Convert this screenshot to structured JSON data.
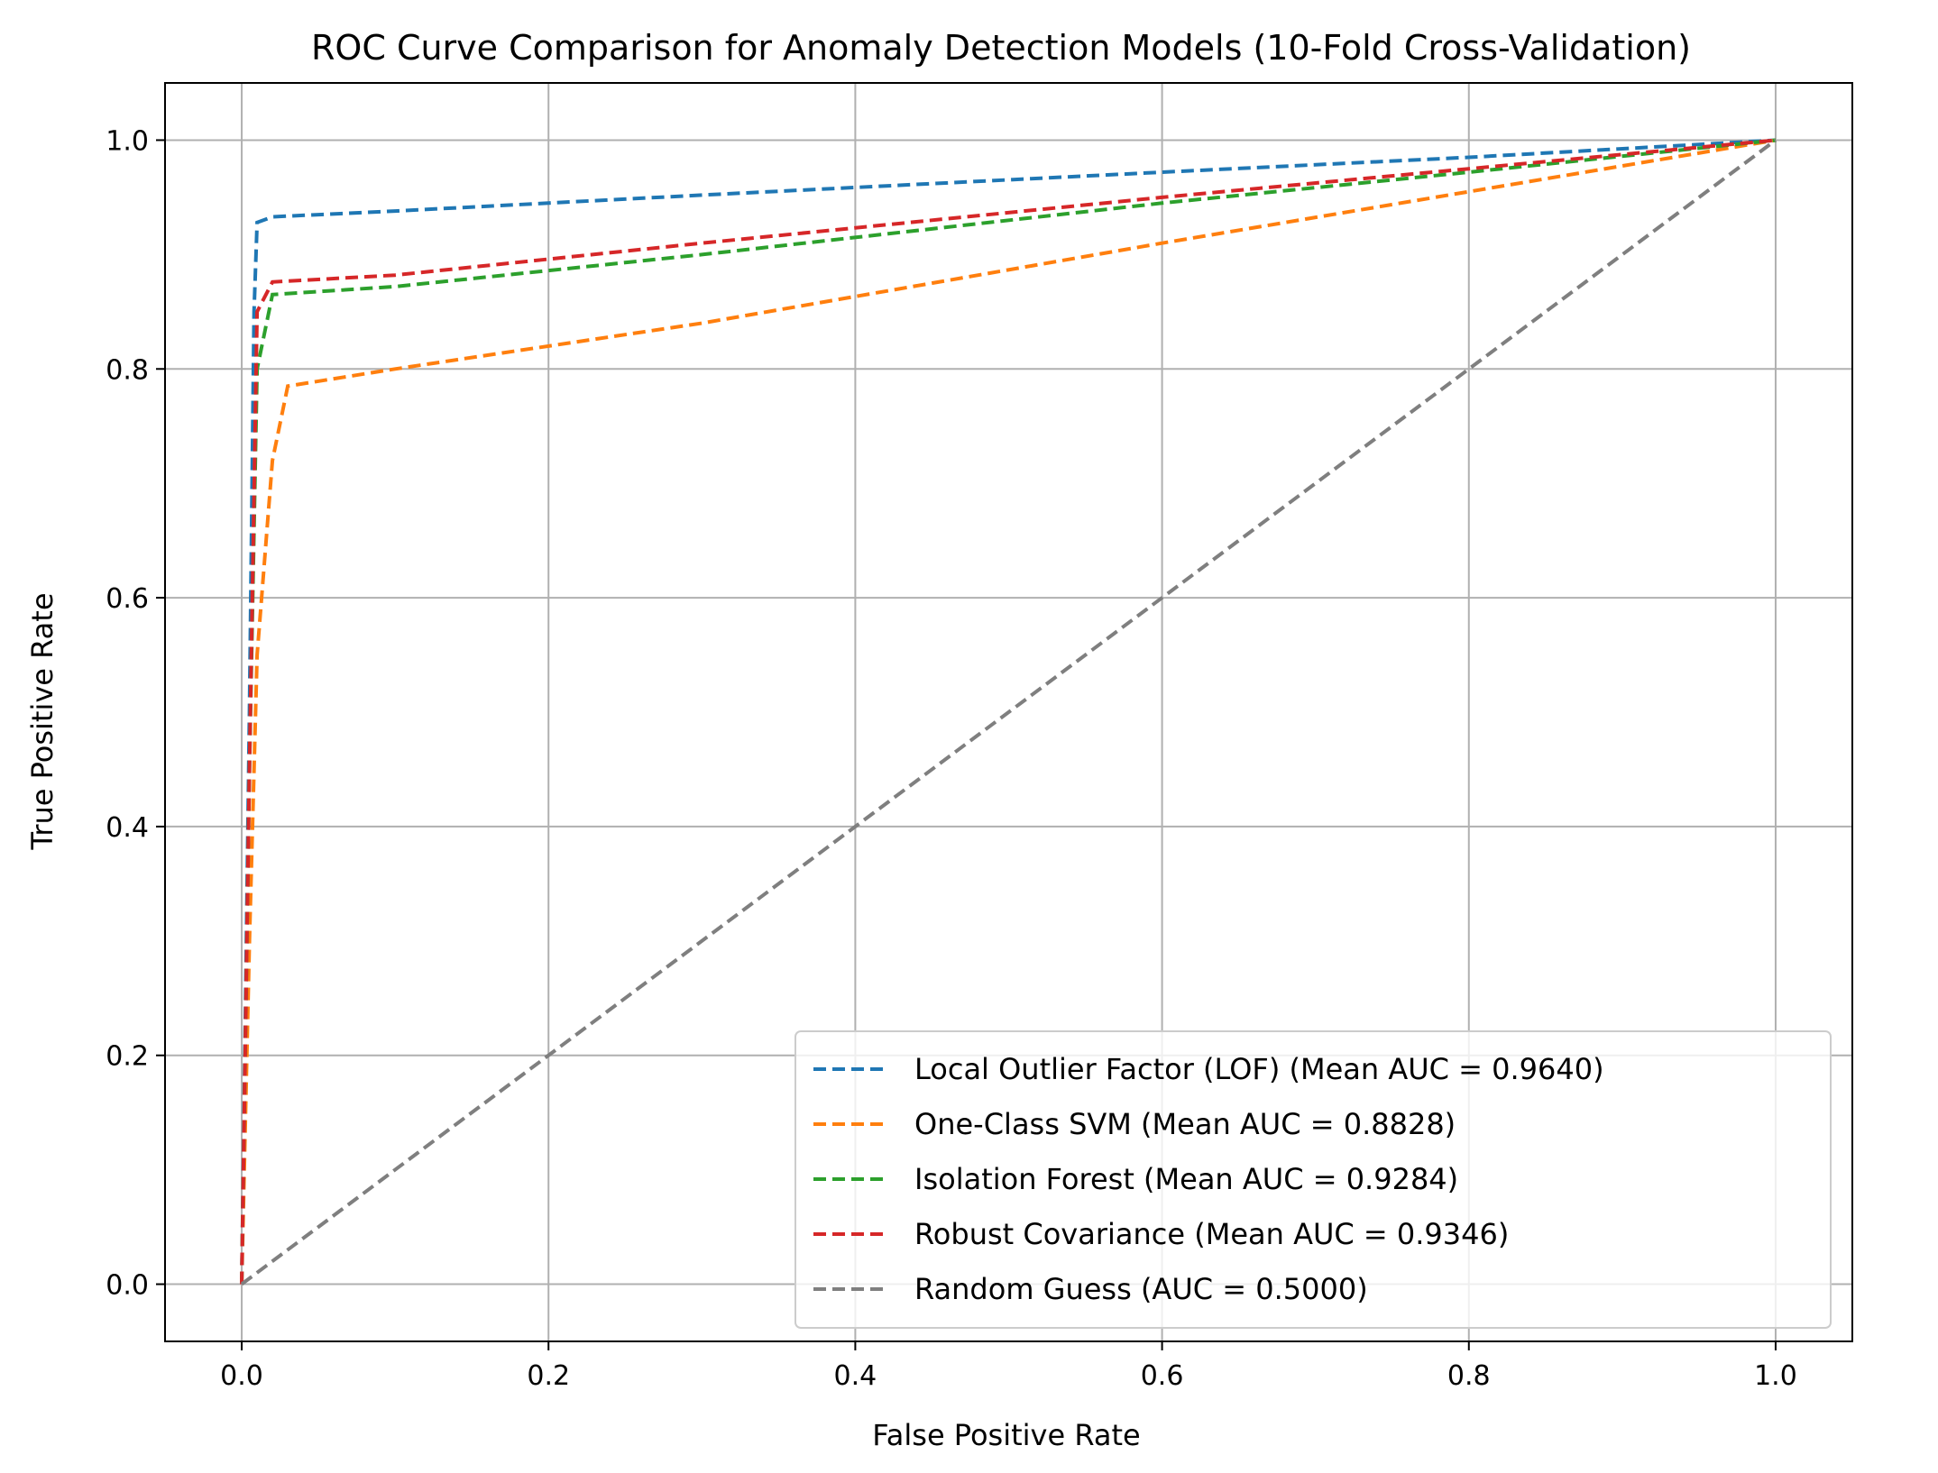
{
  "chart_data": {
    "type": "line",
    "title": "ROC Curve Comparison for Anomaly Detection Models (10-Fold Cross-Validation)",
    "xlabel": "False Positive Rate",
    "ylabel": "True Positive Rate",
    "xlim": [
      -0.05,
      1.05
    ],
    "ylim": [
      -0.05,
      1.05
    ],
    "xticks": [
      "0.0",
      "0.2",
      "0.4",
      "0.6",
      "0.8",
      "1.0"
    ],
    "yticks": [
      "0.0",
      "0.2",
      "0.4",
      "0.6",
      "0.8",
      "1.0"
    ],
    "grid": true,
    "legend_position": "lower-right",
    "series": [
      {
        "name": "Local Outlier Factor (LOF) (Mean AUC = 0.9640)",
        "color": "#1f77b4",
        "x": [
          0.0,
          0.005,
          0.008,
          0.01,
          0.02,
          0.1,
          0.3,
          0.6,
          0.8,
          1.0
        ],
        "y": [
          0.0,
          0.5,
          0.85,
          0.928,
          0.933,
          0.938,
          0.952,
          0.972,
          0.985,
          1.0
        ]
      },
      {
        "name": "One-Class SVM (Mean AUC = 0.8828)",
        "color": "#ff7f0e",
        "x": [
          0.0,
          0.005,
          0.01,
          0.02,
          0.03,
          0.1,
          0.3,
          0.6,
          0.8,
          1.0
        ],
        "y": [
          0.0,
          0.3,
          0.55,
          0.72,
          0.785,
          0.8,
          0.84,
          0.91,
          0.955,
          1.0
        ]
      },
      {
        "name": "Isolation Forest (Mean AUC = 0.9284)",
        "color": "#2ca02c",
        "x": [
          0.0,
          0.005,
          0.01,
          0.02,
          0.1,
          0.3,
          0.6,
          0.8,
          1.0
        ],
        "y": [
          0.0,
          0.45,
          0.8,
          0.865,
          0.872,
          0.9,
          0.945,
          0.972,
          1.0
        ]
      },
      {
        "name": "Robust Covariance (Mean AUC = 0.9346)",
        "color": "#d62728",
        "x": [
          0.0,
          0.005,
          0.01,
          0.02,
          0.1,
          0.3,
          0.6,
          0.8,
          1.0
        ],
        "y": [
          0.0,
          0.45,
          0.85,
          0.876,
          0.882,
          0.91,
          0.95,
          0.975,
          1.0
        ]
      },
      {
        "name": "Random Guess (AUC = 0.5000)",
        "color": "#7f7f7f",
        "x": [
          0.0,
          1.0
        ],
        "y": [
          0.0,
          1.0
        ]
      }
    ]
  }
}
